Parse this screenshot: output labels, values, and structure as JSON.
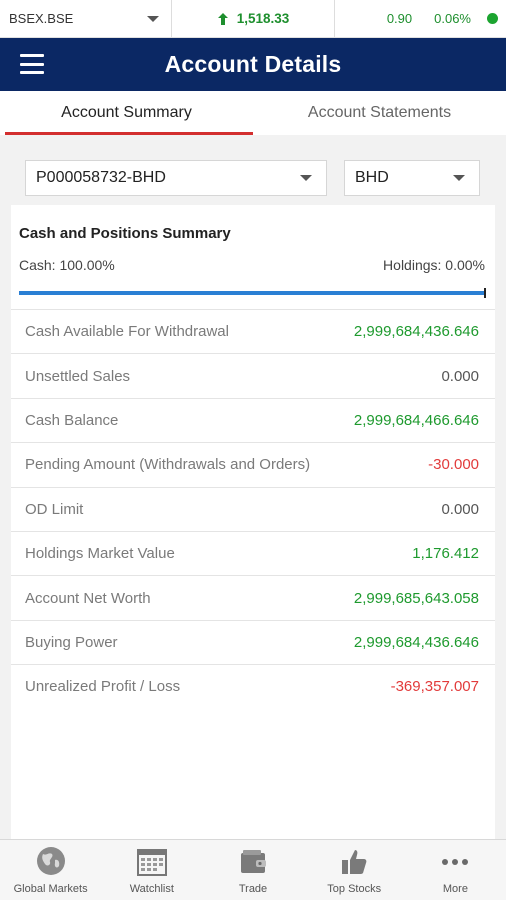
{
  "ticker": {
    "symbol": "BSEX.BSE",
    "index_value": "1,518.33",
    "change": "0.90",
    "change_pct": "0.06%"
  },
  "header": {
    "title": "Account Details"
  },
  "tabs": [
    {
      "label": "Account Summary",
      "active": true
    },
    {
      "label": "Account Statements",
      "active": false
    }
  ],
  "account_select": {
    "value": "P000058732-BHD"
  },
  "currency_select": {
    "value": "BHD"
  },
  "summary": {
    "title": "Cash and Positions Summary",
    "cash_label": "Cash: 100.00%",
    "holdings_label": "Holdings: 0.00%",
    "cash_fraction": 1.0,
    "rows": [
      {
        "label": "Cash Available For Withdrawal",
        "value": "2,999,684,436.646",
        "tone": "green"
      },
      {
        "label": "Unsettled Sales",
        "value": "0.000",
        "tone": "neutral"
      },
      {
        "label": "Cash Balance",
        "value": "2,999,684,466.646",
        "tone": "green"
      },
      {
        "label": "Pending Amount (Withdrawals and Orders)",
        "value": "-30.000",
        "tone": "red"
      },
      {
        "label": "OD Limit",
        "value": "0.000",
        "tone": "neutral"
      },
      {
        "label": "Holdings Market Value",
        "value": "1,176.412",
        "tone": "green"
      },
      {
        "label": "Account Net Worth",
        "value": "2,999,685,643.058",
        "tone": "green"
      },
      {
        "label": "Buying Power",
        "value": "2,999,684,436.646",
        "tone": "green"
      },
      {
        "label": "Unrealized Profit / Loss",
        "value": "-369,357.007",
        "tone": "red"
      }
    ]
  },
  "bottom_nav": [
    {
      "label": "Global Markets",
      "icon": "globe-icon"
    },
    {
      "label": "Watchlist",
      "icon": "calendar-grid-icon"
    },
    {
      "label": "Trade",
      "icon": "wallet-icon"
    },
    {
      "label": "Top Stocks",
      "icon": "thumbs-up-icon"
    },
    {
      "label": "More",
      "icon": "more-dots-icon"
    }
  ],
  "colors": {
    "header_bg": "#0b2864",
    "positive": "#1e9a2e",
    "negative": "#e23b3b",
    "tab_indicator": "#d32f2f",
    "progress": "#2a7fd4"
  }
}
